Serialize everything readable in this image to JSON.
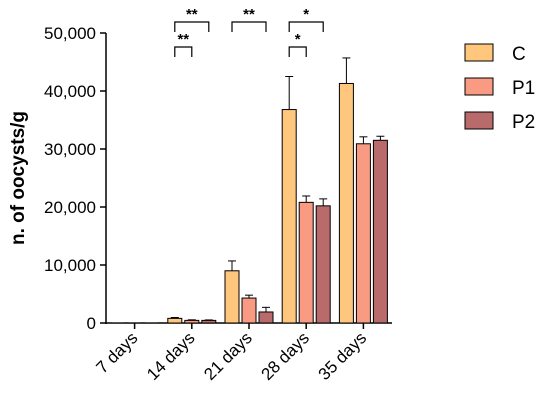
{
  "chart_data": {
    "type": "bar",
    "ylabel": "n. of oocysts/g",
    "xlabel": "",
    "ylim": [
      0,
      50000
    ],
    "yticks": [
      0,
      10000,
      20000,
      30000,
      40000,
      50000
    ],
    "ytick_labels": [
      "0",
      "10,000",
      "20,000",
      "30,000",
      "40,000",
      "50,000"
    ],
    "categories": [
      "7 days",
      "14 days",
      "21 days",
      "28 days",
      "35 days"
    ],
    "series": [
      {
        "name": "C",
        "color": "#FFC77D",
        "values": [
          0,
          800,
          9000,
          36800,
          41300
        ],
        "errors": [
          0,
          150,
          1700,
          5700,
          4400
        ]
      },
      {
        "name": "P1",
        "color": "#F99B83",
        "values": [
          0,
          450,
          4300,
          20800,
          30900
        ],
        "errors": [
          0,
          100,
          500,
          1100,
          1200
        ]
      },
      {
        "name": "P2",
        "color": "#B96B6B",
        "values": [
          0,
          450,
          1900,
          20200,
          31500
        ],
        "errors": [
          0,
          80,
          800,
          1200,
          700
        ]
      }
    ],
    "legend_position": "top-right",
    "grid": false,
    "significance": [
      {
        "category": "14 days",
        "from_series": 0,
        "to_series": 1,
        "label": "**",
        "level": 1
      },
      {
        "category": "14 days",
        "from_series": 0,
        "to_series": 2,
        "label": "**",
        "level": 2
      },
      {
        "category": "21 days",
        "from_series": 0,
        "to_series": 2,
        "label": "**",
        "level": 2
      },
      {
        "category": "28 days",
        "from_series": 0,
        "to_series": 1,
        "label": "*",
        "level": 1
      },
      {
        "category": "28 days",
        "from_series": 0,
        "to_series": 2,
        "label": "*",
        "level": 2
      }
    ]
  }
}
